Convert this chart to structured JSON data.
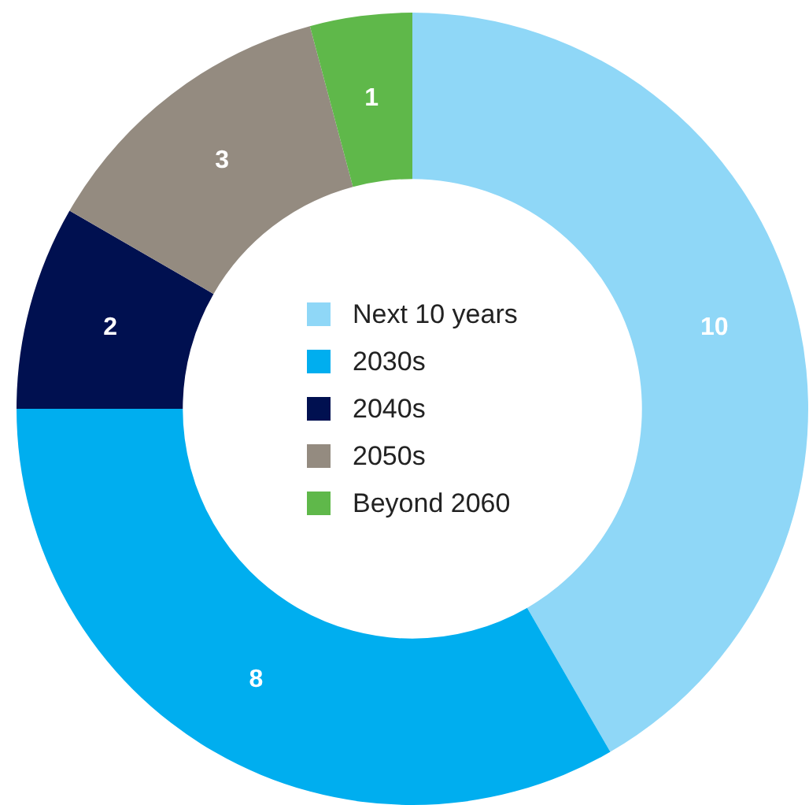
{
  "chart_data": {
    "type": "donut",
    "categories": [
      "Next 10 years",
      "2030s",
      "2040s",
      "2050s",
      "Beyond 2060"
    ],
    "values": [
      10,
      8,
      2,
      3,
      1
    ],
    "colors": [
      "#8fd7f7",
      "#00aeef",
      "#001050",
      "#948b80",
      "#5fb84a"
    ],
    "data_labels": true,
    "legend": "center"
  }
}
